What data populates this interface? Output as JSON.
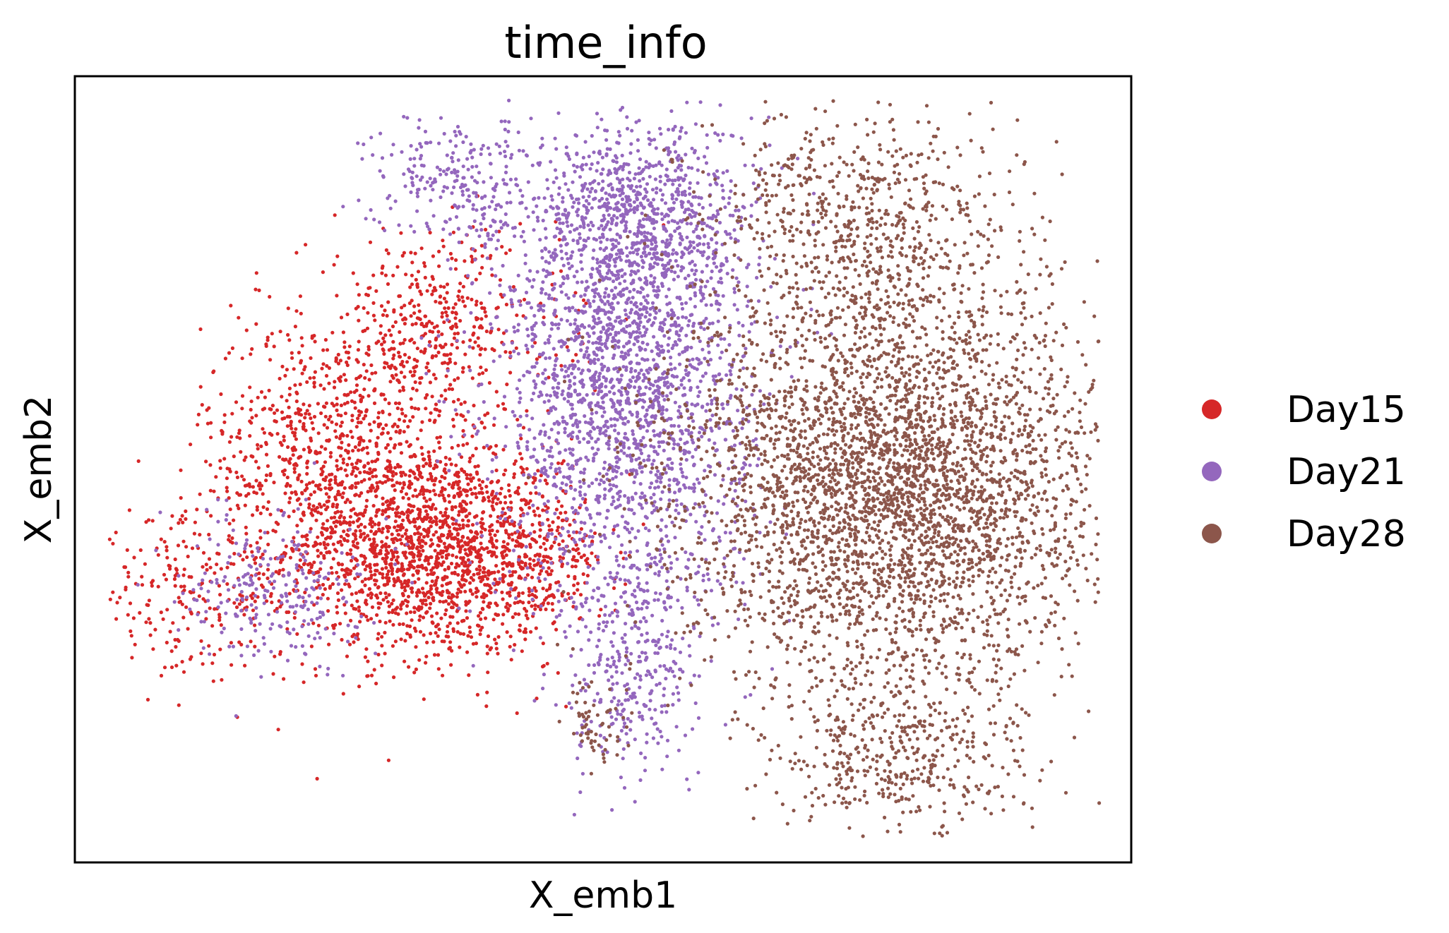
{
  "chart_data": {
    "type": "scatter",
    "title": "time_info",
    "xlabel": "X_emb1",
    "ylabel": "X_emb2",
    "xlim": [
      0,
      100
    ],
    "ylim": [
      0,
      100
    ],
    "grid": false,
    "ticks": false,
    "legend_placement": "right",
    "series": [
      {
        "name": "Day15",
        "color": "#d62728",
        "clusters": [
          {
            "cx": 33,
            "cy": 40,
            "sx": 6.5,
            "sy": 7,
            "n": 1600
          },
          {
            "cx": 24,
            "cy": 53,
            "sx": 6,
            "sy": 8,
            "n": 700
          },
          {
            "cx": 34,
            "cy": 68,
            "sx": 6,
            "sy": 6,
            "n": 450
          },
          {
            "cx": 11,
            "cy": 34,
            "sx": 5,
            "sy": 5,
            "n": 230
          },
          {
            "cx": 43,
            "cy": 38,
            "sx": 3.5,
            "sy": 5,
            "n": 300
          }
        ]
      },
      {
        "name": "Day21",
        "color": "#9467bd",
        "clusters": [
          {
            "cx": 52,
            "cy": 62,
            "sx": 6,
            "sy": 15,
            "n": 2400
          },
          {
            "cx": 54,
            "cy": 82,
            "sx": 5,
            "sy": 6,
            "n": 600
          },
          {
            "cx": 36,
            "cy": 87,
            "sx": 4,
            "sy": 4,
            "n": 250
          },
          {
            "cx": 53,
            "cy": 24,
            "sx": 3,
            "sy": 7,
            "n": 300
          },
          {
            "cx": 19,
            "cy": 35,
            "sx": 4,
            "sy": 5,
            "n": 250
          }
        ]
      },
      {
        "name": "Day28",
        "color": "#8c564b",
        "clusters": [
          {
            "cx": 78,
            "cy": 48,
            "sx": 10,
            "sy": 13,
            "n": 4000
          },
          {
            "cx": 74,
            "cy": 82,
            "sx": 7,
            "sy": 7,
            "n": 650
          },
          {
            "cx": 78,
            "cy": 13,
            "sx": 6,
            "sy": 5,
            "n": 400
          },
          {
            "cx": 49,
            "cy": 17,
            "sx": 1.5,
            "sy": 3,
            "n": 60
          }
        ]
      }
    ]
  }
}
